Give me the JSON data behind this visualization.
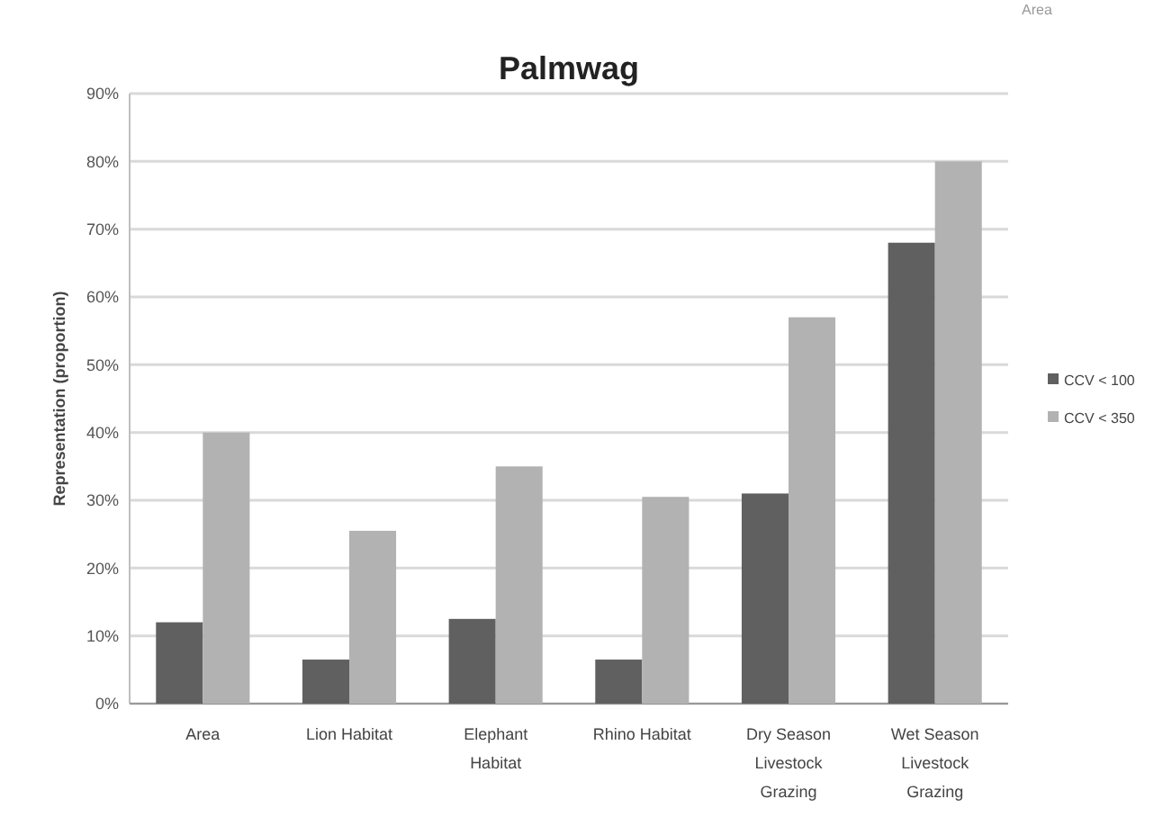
{
  "chart_data": {
    "type": "bar",
    "title": "Palmwag",
    "ylabel": "Representation (proportion)",
    "categories": [
      "Area",
      "Lion Habitat",
      "Elephant Habitat",
      "Rhino Habitat",
      "Dry Season Livestock Grazing",
      "Wet Season Livestock Grazing"
    ],
    "series": [
      {
        "name": "CCV < 100",
        "color": "#606060",
        "values": [
          12,
          6.5,
          12.5,
          6.5,
          31,
          68
        ]
      },
      {
        "name": "CCV < 350",
        "color": "#b2b2b2",
        "values": [
          40,
          25.5,
          35,
          30.5,
          57,
          80
        ]
      }
    ],
    "ylim": [
      0,
      90
    ],
    "yticks": [
      {
        "value": 0,
        "label": "0%"
      },
      {
        "value": 10,
        "label": "10%"
      },
      {
        "value": 20,
        "label": "20%"
      },
      {
        "value": 30,
        "label": "30%"
      },
      {
        "value": 40,
        "label": "40%"
      },
      {
        "value": 50,
        "label": "50%"
      },
      {
        "value": 60,
        "label": "60%"
      },
      {
        "value": 70,
        "label": "70%"
      },
      {
        "value": 80,
        "label": "80%"
      },
      {
        "value": 90,
        "label": "90%"
      }
    ],
    "grid": "y",
    "legend": "right",
    "annotations": [
      "Area"
    ]
  }
}
